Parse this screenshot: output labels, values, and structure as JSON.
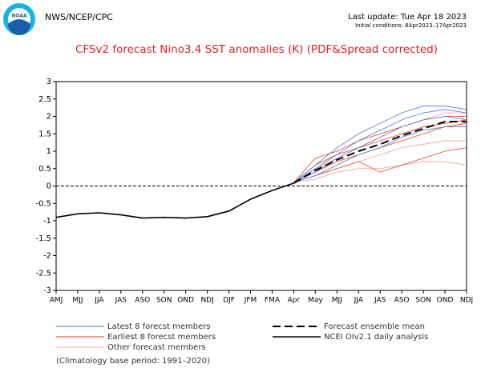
{
  "logo_text": "NOAA",
  "header": {
    "left": "NWS/NCEP/CPC",
    "update": "Last update: Tue Apr 18 2023",
    "initial": "Initial conditions: 8Apr2023–17Apr2023"
  },
  "chart_data": {
    "type": "line",
    "title": "CFSv2 forecast Nino3.4 SST anomalies (K) (PDF&Spread corrected)",
    "footnote": "(Climatology base period: 1991–2020)",
    "categories": [
      "AMJ",
      "MJJ",
      "JJA",
      "JAS",
      "ASO",
      "SON",
      "OND",
      "NDJ",
      "DJF",
      "JFM",
      "FMA",
      "Apr",
      "May",
      "MJJ",
      "JJA",
      "JAS",
      "ASO",
      "SON",
      "OND",
      "NDJ"
    ],
    "ylim": [
      -3,
      3
    ],
    "yticks": [
      -3,
      -2.5,
      -2,
      -1.5,
      -1,
      -0.5,
      0,
      0.5,
      1,
      1.5,
      2,
      2.5,
      3
    ],
    "series": [
      {
        "name": "Latest 8 forecst members",
        "color": "#4a78d8",
        "members": [
          [
            null,
            null,
            null,
            null,
            null,
            null,
            null,
            null,
            null,
            null,
            null,
            0.1,
            0.6,
            1.1,
            1.5,
            1.8,
            2.1,
            2.3,
            2.3,
            2.2
          ],
          [
            null,
            null,
            null,
            null,
            null,
            null,
            null,
            null,
            null,
            null,
            null,
            0.1,
            0.5,
            0.9,
            1.3,
            1.6,
            1.9,
            2.1,
            2.2,
            2.1
          ],
          [
            null,
            null,
            null,
            null,
            null,
            null,
            null,
            null,
            null,
            null,
            null,
            0.1,
            0.4,
            0.8,
            1.1,
            1.4,
            1.7,
            1.9,
            2.0,
            1.9
          ],
          [
            null,
            null,
            null,
            null,
            null,
            null,
            null,
            null,
            null,
            null,
            null,
            0.1,
            0.3,
            0.6,
            0.9,
            1.1,
            1.4,
            1.6,
            1.7,
            1.7
          ]
        ]
      },
      {
        "name": "Earliest 8 forecst members",
        "color": "#e8401c",
        "members": [
          [
            null,
            null,
            null,
            null,
            null,
            null,
            null,
            null,
            null,
            null,
            null,
            0.1,
            0.8,
            1.0,
            1.3,
            1.5,
            1.7,
            1.9,
            2.0,
            2.0
          ],
          [
            null,
            null,
            null,
            null,
            null,
            null,
            null,
            null,
            null,
            null,
            null,
            0.1,
            0.6,
            0.9,
            1.1,
            1.3,
            1.5,
            1.7,
            1.8,
            1.9
          ],
          [
            null,
            null,
            null,
            null,
            null,
            null,
            null,
            null,
            null,
            null,
            null,
            0.1,
            0.4,
            0.7,
            0.9,
            1.1,
            1.3,
            1.5,
            1.7,
            1.8
          ],
          [
            null,
            null,
            null,
            null,
            null,
            null,
            null,
            null,
            null,
            null,
            null,
            0.1,
            0.3,
            0.5,
            0.7,
            0.4,
            0.6,
            0.8,
            1.0,
            1.1
          ]
        ]
      },
      {
        "name": "Other forecast members",
        "color": "#f0a08c",
        "members": [
          [
            null,
            null,
            null,
            null,
            null,
            null,
            null,
            null,
            null,
            null,
            null,
            0.1,
            0.5,
            0.8,
            1.1,
            1.4,
            1.7,
            1.9,
            2.1,
            2.1
          ],
          [
            null,
            null,
            null,
            null,
            null,
            null,
            null,
            null,
            null,
            null,
            null,
            0.1,
            0.3,
            0.5,
            0.7,
            0.9,
            1.1,
            1.2,
            1.3,
            1.3
          ],
          [
            null,
            null,
            null,
            null,
            null,
            null,
            null,
            null,
            null,
            null,
            null,
            0.1,
            0.2,
            0.4,
            0.5,
            0.5,
            0.6,
            0.7,
            0.7,
            0.6
          ]
        ]
      },
      {
        "name": "Forecast ensemble mean",
        "color": "#000000",
        "dash": true,
        "values": [
          null,
          null,
          null,
          null,
          null,
          null,
          null,
          null,
          null,
          null,
          null,
          0.08,
          0.45,
          0.75,
          1.0,
          1.2,
          1.45,
          1.65,
          1.85,
          1.85
        ]
      },
      {
        "name": "NCEI OIv2.1 daily analysis",
        "color": "#000000",
        "values": [
          -0.9,
          -0.8,
          -0.77,
          -0.83,
          -0.92,
          -0.9,
          -0.92,
          -0.88,
          -0.72,
          -0.38,
          -0.13,
          0.08,
          null,
          null,
          null,
          null,
          null,
          null,
          null,
          null
        ]
      }
    ]
  }
}
